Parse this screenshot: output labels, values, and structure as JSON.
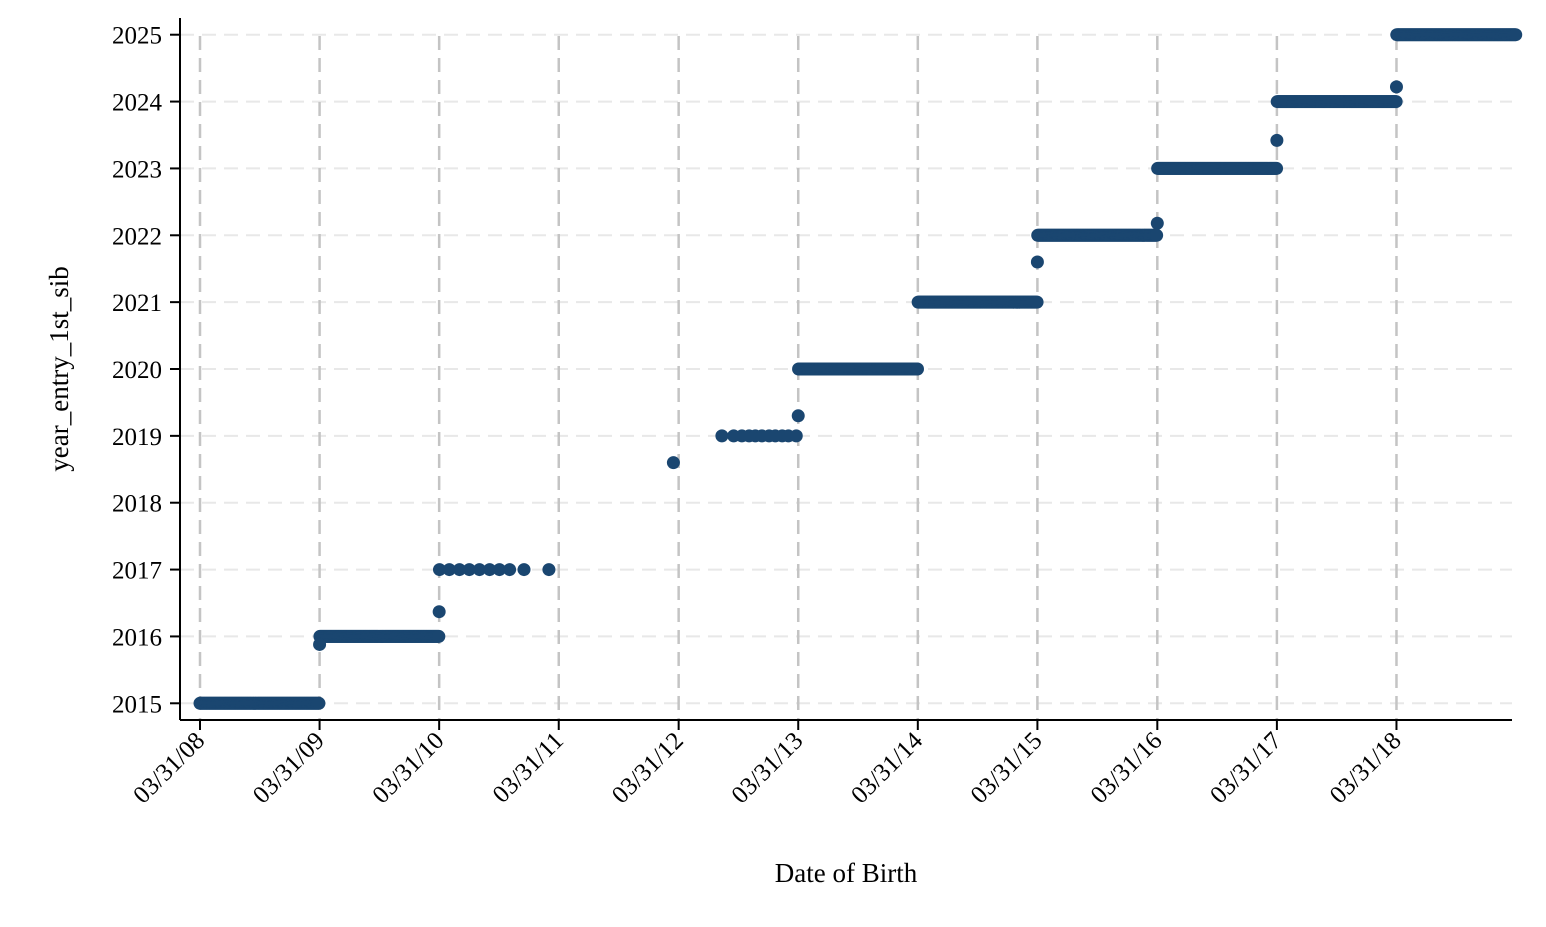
{
  "chart_data": {
    "type": "scatter",
    "xlabel": "Date of Birth",
    "ylabel": "year_entry_1st_sib",
    "x_tick_labels": [
      "03/31/08",
      "03/31/09",
      "03/31/10",
      "03/31/11",
      "03/31/12",
      "03/31/13",
      "03/31/14",
      "03/31/15",
      "03/31/16",
      "03/31/17",
      "03/31/18"
    ],
    "x_tick_dates": [
      "2008-03-31",
      "2009-03-31",
      "2010-03-31",
      "2011-03-31",
      "2012-03-31",
      "2013-03-31",
      "2014-03-31",
      "2015-03-31",
      "2016-03-31",
      "2017-03-31",
      "2018-03-31"
    ],
    "xlim": [
      "2008-03-31",
      "2019-02-10"
    ],
    "y_ticks": [
      2015,
      2016,
      2017,
      2018,
      2019,
      2020,
      2021,
      2022,
      2023,
      2024,
      2025
    ],
    "ylim": [
      2014.75,
      2025.25
    ],
    "grid": true,
    "marker_color": "#1a4670",
    "series": [
      {
        "runs": [
          {
            "from": "2008-03-31",
            "to": "2009-03-30",
            "y": 2015
          },
          {
            "from": "2009-04-01",
            "to": "2010-03-30",
            "y": 2016
          },
          {
            "from": "2013-04-01",
            "to": "2014-03-30",
            "y": 2020
          },
          {
            "from": "2014-04-01",
            "to": "2015-03-30",
            "y": 2021
          },
          {
            "from": "2015-04-01",
            "to": "2016-03-30",
            "y": 2022
          },
          {
            "from": "2016-04-01",
            "to": "2017-03-30",
            "y": 2023
          },
          {
            "from": "2017-04-01",
            "to": "2018-03-30",
            "y": 2024
          },
          {
            "from": "2018-04-01",
            "to": "2019-03-30",
            "y": 2025
          }
        ],
        "points": [
          {
            "x": "2009-03-31",
            "y": 2015.88
          },
          {
            "x": "2010-03-31",
            "y": 2016.37
          },
          {
            "x": "2010-04-01",
            "y": 2017
          },
          {
            "x": "2010-05-01",
            "y": 2017
          },
          {
            "x": "2010-06-01",
            "y": 2017
          },
          {
            "x": "2010-07-01",
            "y": 2017
          },
          {
            "x": "2010-08-01",
            "y": 2017
          },
          {
            "x": "2010-09-01",
            "y": 2017
          },
          {
            "x": "2010-10-01",
            "y": 2017
          },
          {
            "x": "2010-11-01",
            "y": 2017
          },
          {
            "x": "2010-12-15",
            "y": 2017
          },
          {
            "x": "2011-03-01",
            "y": 2017
          },
          {
            "x": "2012-03-15",
            "y": 2018.6
          },
          {
            "x": "2012-08-10",
            "y": 2019
          },
          {
            "x": "2012-09-15",
            "y": 2019
          },
          {
            "x": "2012-10-10",
            "y": 2019
          },
          {
            "x": "2012-11-01",
            "y": 2019
          },
          {
            "x": "2012-11-20",
            "y": 2019
          },
          {
            "x": "2012-12-10",
            "y": 2019
          },
          {
            "x": "2013-01-01",
            "y": 2019
          },
          {
            "x": "2013-01-20",
            "y": 2019
          },
          {
            "x": "2013-02-10",
            "y": 2019
          },
          {
            "x": "2013-03-01",
            "y": 2019
          },
          {
            "x": "2013-03-25",
            "y": 2019
          },
          {
            "x": "2013-03-31",
            "y": 2019.3
          },
          {
            "x": "2015-03-31",
            "y": 2021.6
          },
          {
            "x": "2016-03-31",
            "y": 2022.18
          },
          {
            "x": "2017-03-31",
            "y": 2023.42
          },
          {
            "x": "2018-03-31",
            "y": 2024.22
          }
        ]
      }
    ]
  }
}
